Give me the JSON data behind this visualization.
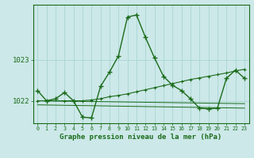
{
  "title": "Graphe pression niveau de la mer (hPa)",
  "bg_color": "#cce8e8",
  "grid_color": "#aad4d4",
  "line_color": "#1a6b1a",
  "xlim": [
    -0.5,
    23.5
  ],
  "ylim": [
    1021.45,
    1024.35
  ],
  "yticks": [
    1022,
    1023
  ],
  "xticks": [
    0,
    1,
    2,
    3,
    4,
    5,
    6,
    7,
    8,
    9,
    10,
    11,
    12,
    13,
    14,
    15,
    16,
    17,
    18,
    19,
    20,
    21,
    22,
    23
  ],
  "series_main": {
    "x": [
      0,
      1,
      2,
      3,
      4,
      5,
      6,
      7,
      8,
      9,
      10,
      11,
      12,
      13,
      14,
      15,
      16,
      17,
      18,
      19,
      20,
      21,
      22,
      23
    ],
    "y": [
      1022.25,
      1022.0,
      1022.05,
      1022.2,
      1022.0,
      1021.6,
      1021.58,
      1022.35,
      1022.7,
      1023.1,
      1024.05,
      1024.1,
      1023.55,
      1023.05,
      1022.6,
      1022.38,
      1022.25,
      1022.05,
      1021.82,
      1021.8,
      1021.82,
      1022.55,
      1022.75,
      1022.55
    ]
  },
  "series_trend": {
    "x": [
      0,
      3,
      4,
      5,
      6,
      7,
      8,
      9,
      10,
      11,
      12,
      13,
      14,
      15,
      16,
      17,
      18,
      19,
      20,
      21,
      22,
      23
    ],
    "y": [
      1022.0,
      1022.0,
      1022.0,
      1022.0,
      1022.02,
      1022.05,
      1022.1,
      1022.13,
      1022.17,
      1022.22,
      1022.27,
      1022.32,
      1022.37,
      1022.42,
      1022.47,
      1022.52,
      1022.56,
      1022.6,
      1022.64,
      1022.68,
      1022.73,
      1022.77
    ]
  },
  "series_flat1": {
    "x": [
      0,
      23
    ],
    "y": [
      1022.0,
      1021.93
    ]
  },
  "series_flat2": {
    "x": [
      0,
      23
    ],
    "y": [
      1021.9,
      1021.82
    ]
  }
}
